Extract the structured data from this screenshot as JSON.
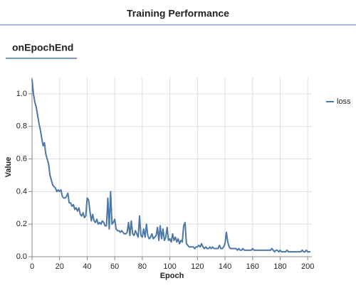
{
  "header": {
    "title": "Training Performance"
  },
  "tab": {
    "label": "onEpochEnd"
  },
  "chart_data": {
    "type": "line",
    "xlabel": "Epoch",
    "ylabel": "Value",
    "x": [
      0,
      1,
      2,
      3,
      4,
      5,
      6,
      7,
      8,
      9,
      10,
      11,
      12,
      13,
      14,
      15,
      16,
      17,
      18,
      19,
      20,
      21,
      22,
      23,
      24,
      25,
      26,
      27,
      28,
      29,
      30,
      31,
      32,
      33,
      34,
      35,
      36,
      37,
      38,
      39,
      40,
      41,
      42,
      43,
      44,
      45,
      46,
      47,
      48,
      49,
      50,
      51,
      52,
      53,
      54,
      55,
      56,
      57,
      58,
      59,
      60,
      61,
      62,
      63,
      64,
      65,
      66,
      67,
      68,
      69,
      70,
      71,
      72,
      73,
      74,
      75,
      76,
      77,
      78,
      79,
      80,
      81,
      82,
      83,
      84,
      85,
      86,
      87,
      88,
      89,
      90,
      91,
      92,
      93,
      94,
      95,
      96,
      97,
      98,
      99,
      100,
      101,
      102,
      103,
      104,
      105,
      106,
      107,
      108,
      109,
      110,
      111,
      112,
      113,
      114,
      115,
      116,
      117,
      118,
      119,
      120,
      121,
      122,
      123,
      124,
      125,
      126,
      127,
      128,
      129,
      130,
      131,
      132,
      133,
      134,
      135,
      136,
      137,
      138,
      139,
      140,
      141,
      142,
      143,
      144,
      145,
      146,
      147,
      148,
      149,
      150,
      151,
      152,
      153,
      154,
      155,
      156,
      157,
      158,
      159,
      160,
      161,
      162,
      163,
      164,
      165,
      166,
      167,
      168,
      169,
      170,
      171,
      172,
      173,
      174,
      175,
      176,
      177,
      178,
      179,
      180,
      181,
      182,
      183,
      184,
      185,
      186,
      187,
      188,
      189,
      190,
      191,
      192,
      193,
      194,
      195,
      196,
      197,
      198,
      199,
      200,
      201,
      202
    ],
    "series": [
      {
        "name": "loss",
        "color": "#4c78a8",
        "values": [
          1.09,
          1.0,
          0.95,
          0.92,
          0.87,
          0.82,
          0.78,
          0.73,
          0.68,
          0.7,
          0.63,
          0.6,
          0.57,
          0.5,
          0.47,
          0.44,
          0.43,
          0.42,
          0.4,
          0.41,
          0.4,
          0.41,
          0.37,
          0.36,
          0.36,
          0.37,
          0.39,
          0.33,
          0.33,
          0.31,
          0.32,
          0.29,
          0.3,
          0.28,
          0.3,
          0.26,
          0.25,
          0.27,
          0.24,
          0.25,
          0.36,
          0.35,
          0.28,
          0.22,
          0.26,
          0.22,
          0.21,
          0.23,
          0.2,
          0.21,
          0.2,
          0.22,
          0.21,
          0.19,
          0.19,
          0.36,
          0.17,
          0.4,
          0.2,
          0.21,
          0.23,
          0.17,
          0.16,
          0.16,
          0.15,
          0.16,
          0.15,
          0.14,
          0.14,
          0.15,
          0.21,
          0.13,
          0.22,
          0.14,
          0.13,
          0.16,
          0.14,
          0.12,
          0.25,
          0.13,
          0.12,
          0.17,
          0.12,
          0.2,
          0.13,
          0.11,
          0.12,
          0.14,
          0.11,
          0.12,
          0.13,
          0.18,
          0.1,
          0.19,
          0.11,
          0.17,
          0.1,
          0.12,
          0.18,
          0.1,
          0.11,
          0.09,
          0.14,
          0.1,
          0.12,
          0.09,
          0.11,
          0.08,
          0.1,
          0.09,
          0.19,
          0.21,
          0.08,
          0.07,
          0.06,
          0.06,
          0.06,
          0.06,
          0.05,
          0.06,
          0.06,
          0.07,
          0.06,
          0.08,
          0.06,
          0.05,
          0.06,
          0.05,
          0.05,
          0.06,
          0.05,
          0.06,
          0.05,
          0.05,
          0.05,
          0.05,
          0.07,
          0.05,
          0.05,
          0.06,
          0.08,
          0.15,
          0.09,
          0.06,
          0.05,
          0.05,
          0.05,
          0.05,
          0.05,
          0.04,
          0.05,
          0.04,
          0.04,
          0.05,
          0.04,
          0.04,
          0.04,
          0.04,
          0.04,
          0.04,
          0.05,
          0.04,
          0.04,
          0.04,
          0.04,
          0.04,
          0.04,
          0.04,
          0.04,
          0.04,
          0.04,
          0.04,
          0.04,
          0.04,
          0.05,
          0.04,
          0.03,
          0.04,
          0.04,
          0.03,
          0.04,
          0.03,
          0.03,
          0.03,
          0.03,
          0.04,
          0.03,
          0.03,
          0.03,
          0.03,
          0.03,
          0.03,
          0.03,
          0.03,
          0.03,
          0.03,
          0.04,
          0.03,
          0.03,
          0.04,
          0.03,
          0.03,
          0.03
        ]
      }
    ],
    "xlim": [
      0,
      203
    ],
    "xticks": [
      0,
      20,
      40,
      60,
      80,
      100,
      120,
      140,
      160,
      180,
      200
    ],
    "ylim": [
      0,
      1.1
    ],
    "yticks": [
      {
        "value": 0,
        "label": "0.0"
      },
      0.2,
      0.4,
      0.6,
      0.8,
      {
        "value": 1,
        "label": "1.0"
      }
    ],
    "grid": true,
    "legend": "right"
  }
}
